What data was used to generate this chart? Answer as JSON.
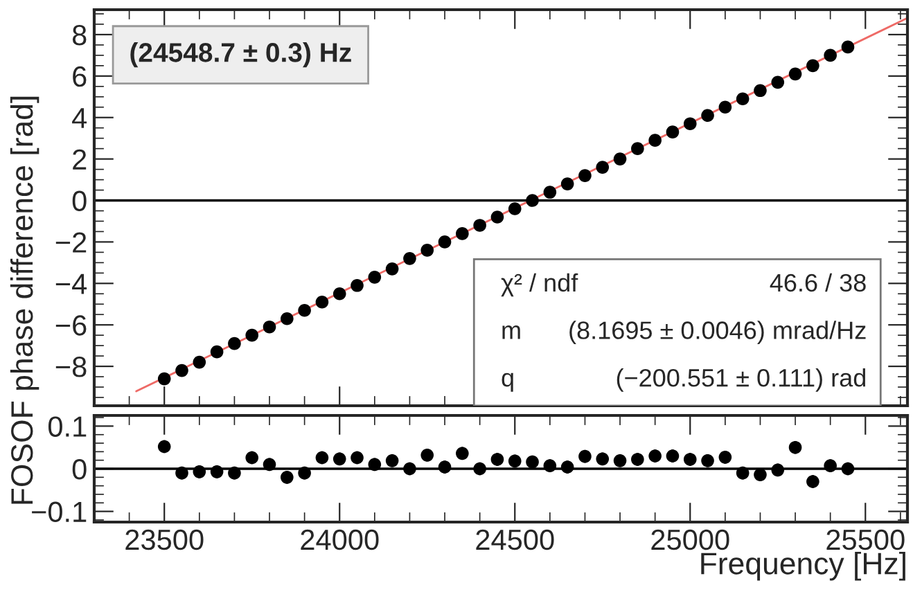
{
  "chart_data": [
    {
      "type": "scatter",
      "ylabel": "FOSOF phase difference [rad]",
      "x": [
        23500,
        23550,
        23600,
        23650,
        23700,
        23750,
        23800,
        23850,
        23900,
        23950,
        24000,
        24050,
        24100,
        24150,
        24200,
        24250,
        24300,
        24350,
        24400,
        24450,
        24500,
        24550,
        24600,
        24650,
        24700,
        24750,
        24800,
        24850,
        24900,
        24950,
        25000,
        25050,
        25100,
        25150,
        25200,
        25250,
        25300,
        25350,
        25400,
        25450
      ],
      "series": [
        {
          "color": "#000000",
          "marker": "circle",
          "values": [
            -8.6,
            -8.2,
            -7.8,
            -7.3,
            -6.9,
            -6.5,
            -6.1,
            -5.7,
            -5.3,
            -4.9,
            -4.5,
            -4.1,
            -3.7,
            -3.3,
            -2.8,
            -2.4,
            -2.0,
            -1.6,
            -1.2,
            -0.8,
            -0.4,
            0.0,
            0.4,
            0.8,
            1.2,
            1.6,
            2.0,
            2.5,
            2.9,
            3.3,
            3.7,
            4.1,
            4.5,
            4.9,
            5.3,
            5.7,
            6.1,
            6.5,
            7.0,
            7.4
          ]
        },
        {
          "type": "line",
          "marker": "none",
          "color": "#ee6a66",
          "x": [
            23420,
            25620
          ],
          "values": [
            -9.2,
            8.8
          ]
        }
      ],
      "xlim": [
        23300,
        25620
      ],
      "ylim": [
        -9.9,
        9.2
      ],
      "yticks": [
        -8,
        -6,
        -4,
        -2,
        0,
        2,
        4,
        6,
        8
      ],
      "tick_labels": "y",
      "grid": false,
      "ref_lines": [
        {
          "axis": "y",
          "value": 0,
          "color": "#000000"
        }
      ],
      "annotations": [
        "(24548.7 ± 0.3) Hz",
        "χ² / ndf",
        "46.6 / 38",
        "m",
        "(8.1695 ± 0.0046) mrad/Hz",
        "q",
        "(−200.551 ± 0.111) rad"
      ]
    },
    {
      "type": "scatter",
      "xlabel": "Frequency [Hz]",
      "x": [
        23500,
        23550,
        23600,
        23650,
        23700,
        23750,
        23800,
        23850,
        23900,
        23950,
        24000,
        24050,
        24100,
        24150,
        24200,
        24250,
        24300,
        24350,
        24400,
        24450,
        24500,
        24550,
        24600,
        24650,
        24700,
        24750,
        24800,
        24850,
        24900,
        24950,
        25000,
        25050,
        25100,
        25150,
        25200,
        25250,
        25300,
        25350,
        25400,
        25450
      ],
      "series": [
        {
          "color": "#000000",
          "values": [
            0.052,
            -0.01,
            -0.007,
            -0.007,
            -0.01,
            0.026,
            0.01,
            -0.02,
            -0.01,
            0.026,
            0.023,
            0.026,
            0.01,
            0.019,
            0.0,
            0.032,
            0.004,
            0.036,
            0.0,
            0.022,
            0.018,
            0.016,
            0.007,
            0.004,
            0.029,
            0.023,
            0.019,
            0.022,
            0.03,
            0.03,
            0.022,
            0.019,
            0.027,
            -0.01,
            -0.014,
            -0.003,
            0.05,
            -0.03,
            0.007,
            0.0
          ],
          "errors": [
            0.015,
            0.015,
            0.015,
            0.015,
            0.015,
            0.015,
            0.015,
            0.015,
            0.015,
            0.015,
            0.015,
            0.015,
            0.015,
            0.015,
            0.015,
            0.015,
            0.015,
            0.015,
            0.015,
            0.015,
            0.015,
            0.015,
            0.015,
            0.015,
            0.015,
            0.015,
            0.015,
            0.015,
            0.015,
            0.015,
            0.015,
            0.015,
            0.015,
            0.015,
            0.015,
            0.015,
            0.015,
            0.015,
            0.015,
            0.015
          ]
        }
      ],
      "xlim": [
        23300,
        25620
      ],
      "xticks": [
        23500,
        24000,
        24500,
        25000,
        25500
      ],
      "ylim": [
        -0.125,
        0.125
      ],
      "yticks": [
        -0.1,
        0,
        0.1
      ],
      "marker": "circle",
      "grid": false,
      "ref_lines": [
        {
          "axis": "y",
          "value": 0,
          "color": "#000000"
        }
      ]
    }
  ]
}
